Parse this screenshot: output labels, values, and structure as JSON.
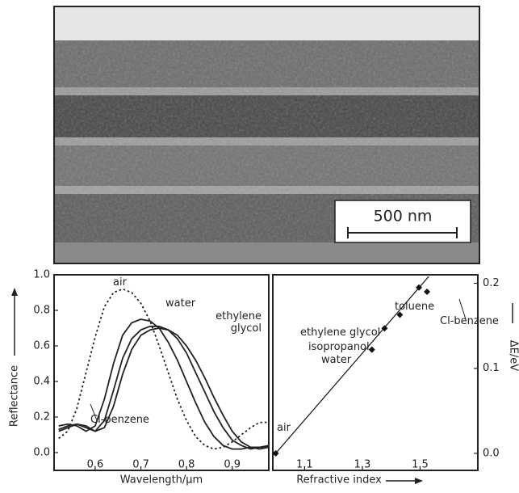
{
  "image": {
    "scale_bar": "500 nm"
  },
  "chart_data": [
    {
      "type": "line",
      "xlabel": "Wavelength/µm",
      "ylabel": "Reflectance",
      "xlim": [
        0.51,
        0.98
      ],
      "ylim": [
        -0.1,
        1.0
      ],
      "xticks": [
        0.6,
        0.7,
        0.8,
        0.9
      ],
      "yticks": [
        {
          "value": 0,
          "label": "0.0"
        },
        0.2,
        0.4,
        0.6,
        0.8,
        {
          "value": 1,
          "label": "1.0"
        }
      ],
      "x": [
        0.52,
        0.54,
        0.56,
        0.58,
        0.6,
        0.62,
        0.64,
        0.66,
        0.68,
        0.7,
        0.72,
        0.74,
        0.76,
        0.78,
        0.8,
        0.82,
        0.84,
        0.86,
        0.88,
        0.9,
        0.92,
        0.94,
        0.96,
        0.98
      ],
      "series": [
        {
          "name": "air",
          "color": "#222222",
          "style": "dotted",
          "values": [
            0.08,
            0.12,
            0.25,
            0.45,
            0.65,
            0.82,
            0.9,
            0.92,
            0.9,
            0.84,
            0.74,
            0.6,
            0.45,
            0.3,
            0.18,
            0.09,
            0.04,
            0.02,
            0.03,
            0.06,
            0.1,
            0.14,
            0.17,
            0.17
          ]
        },
        {
          "name": "water",
          "color": "#222222",
          "style": "solid",
          "values": [
            0.15,
            0.16,
            0.15,
            0.12,
            0.15,
            0.3,
            0.5,
            0.66,
            0.73,
            0.75,
            0.74,
            0.7,
            0.62,
            0.52,
            0.4,
            0.28,
            0.17,
            0.09,
            0.04,
            0.02,
            0.02,
            0.03,
            0.03,
            0.04
          ]
        },
        {
          "name": "ethylene glycol",
          "color": "#222222",
          "style": "solid",
          "values": [
            0.13,
            0.15,
            0.16,
            0.14,
            0.12,
            0.18,
            0.35,
            0.53,
            0.64,
            0.69,
            0.71,
            0.71,
            0.69,
            0.64,
            0.56,
            0.45,
            0.34,
            0.23,
            0.14,
            0.07,
            0.04,
            0.02,
            0.03,
            0.03
          ]
        },
        {
          "name": "Cl-benzene",
          "color": "#222222",
          "style": "solid",
          "values": [
            0.12,
            0.14,
            0.16,
            0.15,
            0.12,
            0.14,
            0.26,
            0.44,
            0.58,
            0.66,
            0.69,
            0.7,
            0.69,
            0.66,
            0.6,
            0.52,
            0.42,
            0.31,
            0.21,
            0.12,
            0.06,
            0.03,
            0.02,
            0.03
          ]
        }
      ]
    },
    {
      "type": "scatter",
      "xlabel": "Refractive index",
      "ylabel": "ΔE/eV",
      "xlim": [
        0.99,
        1.7
      ],
      "ylim": [
        -0.02,
        0.21
      ],
      "xticks": [
        1.1,
        1.3,
        1.5
      ],
      "yticks": [
        {
          "value": 0,
          "label": "0.0"
        },
        0.1,
        0.2
      ],
      "point_labels": [
        "air",
        "water",
        "isopropanol",
        "ethylene glycol",
        "toluene",
        "Cl-benzene"
      ],
      "x": [
        1.0,
        1.333,
        1.377,
        1.43,
        1.496,
        1.524
      ],
      "values": [
        0.0,
        0.122,
        0.147,
        0.163,
        0.195,
        0.19
      ],
      "color": "#111111",
      "fit": {
        "x": [
          1.0,
          1.53
        ],
        "values": [
          0.0,
          0.208
        ]
      }
    }
  ]
}
